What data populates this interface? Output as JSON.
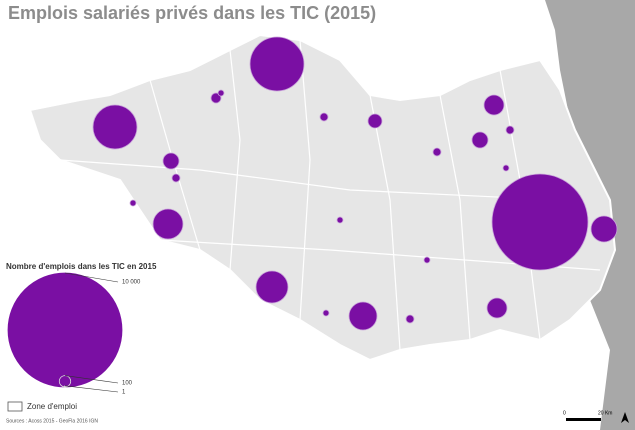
{
  "title": "Emplois salariés privés dans les TIC (2015)",
  "legend": {
    "title": "Nombre d'emplois dans les TIC en 2015",
    "ticks": [
      {
        "value": 10000,
        "label": "10 000"
      },
      100,
      1
    ],
    "zone": "Zone d'emploi"
  },
  "sources": "Sources : Acoss 2015 - GeoFla 2016 IGN",
  "scale": {
    "start": 0,
    "end": "20 Km"
  }
}
